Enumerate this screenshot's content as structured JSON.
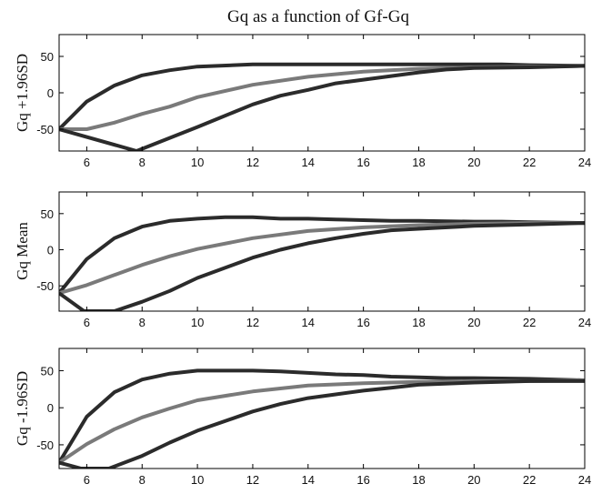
{
  "figure_title": "Gq as a function of Gf-Gq",
  "colors": {
    "dark_series": "#2b2b2b",
    "light_series": "#7a7a7a",
    "axes": "#000000"
  },
  "chart_data": [
    {
      "type": "line",
      "ylabel": "Gq +1.96SD",
      "xlim": [
        5,
        24
      ],
      "ylim": [
        -80,
        80
      ],
      "xticks": [
        6,
        8,
        10,
        12,
        14,
        16,
        18,
        20,
        22,
        24
      ],
      "yticks": [
        50,
        0,
        -50
      ],
      "grid": false,
      "series": [
        {
          "color": "dark",
          "x": [
            5,
            6,
            7,
            8,
            9,
            10,
            12,
            14,
            16,
            18,
            20,
            21,
            22,
            24
          ],
          "y": [
            -50,
            -12,
            10,
            24,
            31,
            36,
            39,
            39,
            39,
            39,
            39,
            39,
            38,
            37
          ]
        },
        {
          "color": "light",
          "x": [
            5,
            6,
            7,
            8,
            9,
            10,
            12,
            14,
            16,
            18,
            20,
            22,
            24
          ],
          "y": [
            -50,
            -50,
            -41,
            -29,
            -19,
            -6,
            11,
            22,
            29,
            33,
            35,
            36,
            37
          ]
        },
        {
          "color": "dark",
          "x": [
            5,
            7.8,
            10,
            12,
            13,
            14,
            15,
            16,
            17,
            18,
            19,
            20,
            22,
            24
          ],
          "y": [
            -50,
            -80,
            -47,
            -16,
            -4,
            4,
            13,
            18,
            23,
            28,
            32,
            34,
            35,
            37
          ]
        }
      ]
    },
    {
      "type": "line",
      "ylabel": "Gq Mean",
      "xlim": [
        5,
        24
      ],
      "ylim": [
        -85,
        80
      ],
      "xticks": [
        6,
        8,
        10,
        12,
        14,
        16,
        18,
        20,
        22,
        24
      ],
      "yticks": [
        50,
        0,
        -50
      ],
      "grid": false,
      "series": [
        {
          "color": "dark",
          "x": [
            5,
            6,
            7,
            8,
            9,
            10,
            11,
            12,
            13,
            14,
            15,
            16,
            17,
            18,
            20,
            21,
            22,
            24
          ],
          "y": [
            -60,
            -13,
            16,
            32,
            40,
            43,
            45,
            45,
            43,
            43,
            42,
            41,
            40,
            40,
            39,
            39,
            38,
            37
          ]
        },
        {
          "color": "light",
          "x": [
            5,
            6,
            7,
            8,
            9,
            10,
            12,
            14,
            16,
            18,
            20,
            22,
            24
          ],
          "y": [
            -60,
            -49,
            -35,
            -21,
            -9,
            1,
            16,
            26,
            31,
            34,
            36,
            37,
            37
          ]
        },
        {
          "color": "dark",
          "x": [
            5,
            5.9,
            7,
            8,
            9,
            10,
            12,
            13,
            14,
            15,
            16,
            17,
            18,
            20,
            22,
            24
          ],
          "y": [
            -60,
            -85,
            -85,
            -72,
            -57,
            -39,
            -11,
            0,
            9,
            16,
            22,
            27,
            29,
            33,
            35,
            37
          ]
        }
      ]
    },
    {
      "type": "line",
      "ylabel": "Gq -1.96SD",
      "xlim": [
        5,
        24
      ],
      "ylim": [
        -82,
        80
      ],
      "xticks": [
        6,
        8,
        10,
        12,
        14,
        16,
        18,
        20,
        22,
        24
      ],
      "yticks": [
        50,
        0,
        -50
      ],
      "grid": false,
      "series": [
        {
          "color": "dark",
          "x": [
            5,
            6,
            7,
            8,
            9,
            10,
            11,
            12,
            13,
            14,
            15,
            16,
            17,
            18,
            19,
            20,
            22,
            24
          ],
          "y": [
            -74,
            -12,
            21,
            38,
            46,
            50,
            50,
            50,
            49,
            47,
            45,
            44,
            42,
            41,
            40,
            40,
            39,
            37
          ]
        },
        {
          "color": "light",
          "x": [
            5,
            6,
            7,
            8,
            9,
            10,
            12,
            14,
            16,
            18,
            20,
            22,
            24
          ],
          "y": [
            -74,
            -49,
            -29,
            -13,
            -1,
            10,
            22,
            30,
            33,
            35,
            36,
            36,
            37
          ]
        },
        {
          "color": "dark",
          "x": [
            5,
            5.8,
            6.8,
            8,
            9,
            10,
            12,
            13,
            14,
            15,
            16,
            17,
            18,
            20,
            22,
            24
          ],
          "y": [
            -74,
            -82,
            -82,
            -65,
            -47,
            -31,
            -5,
            5,
            13,
            18,
            23,
            27,
            31,
            34,
            36,
            36
          ]
        }
      ]
    }
  ]
}
